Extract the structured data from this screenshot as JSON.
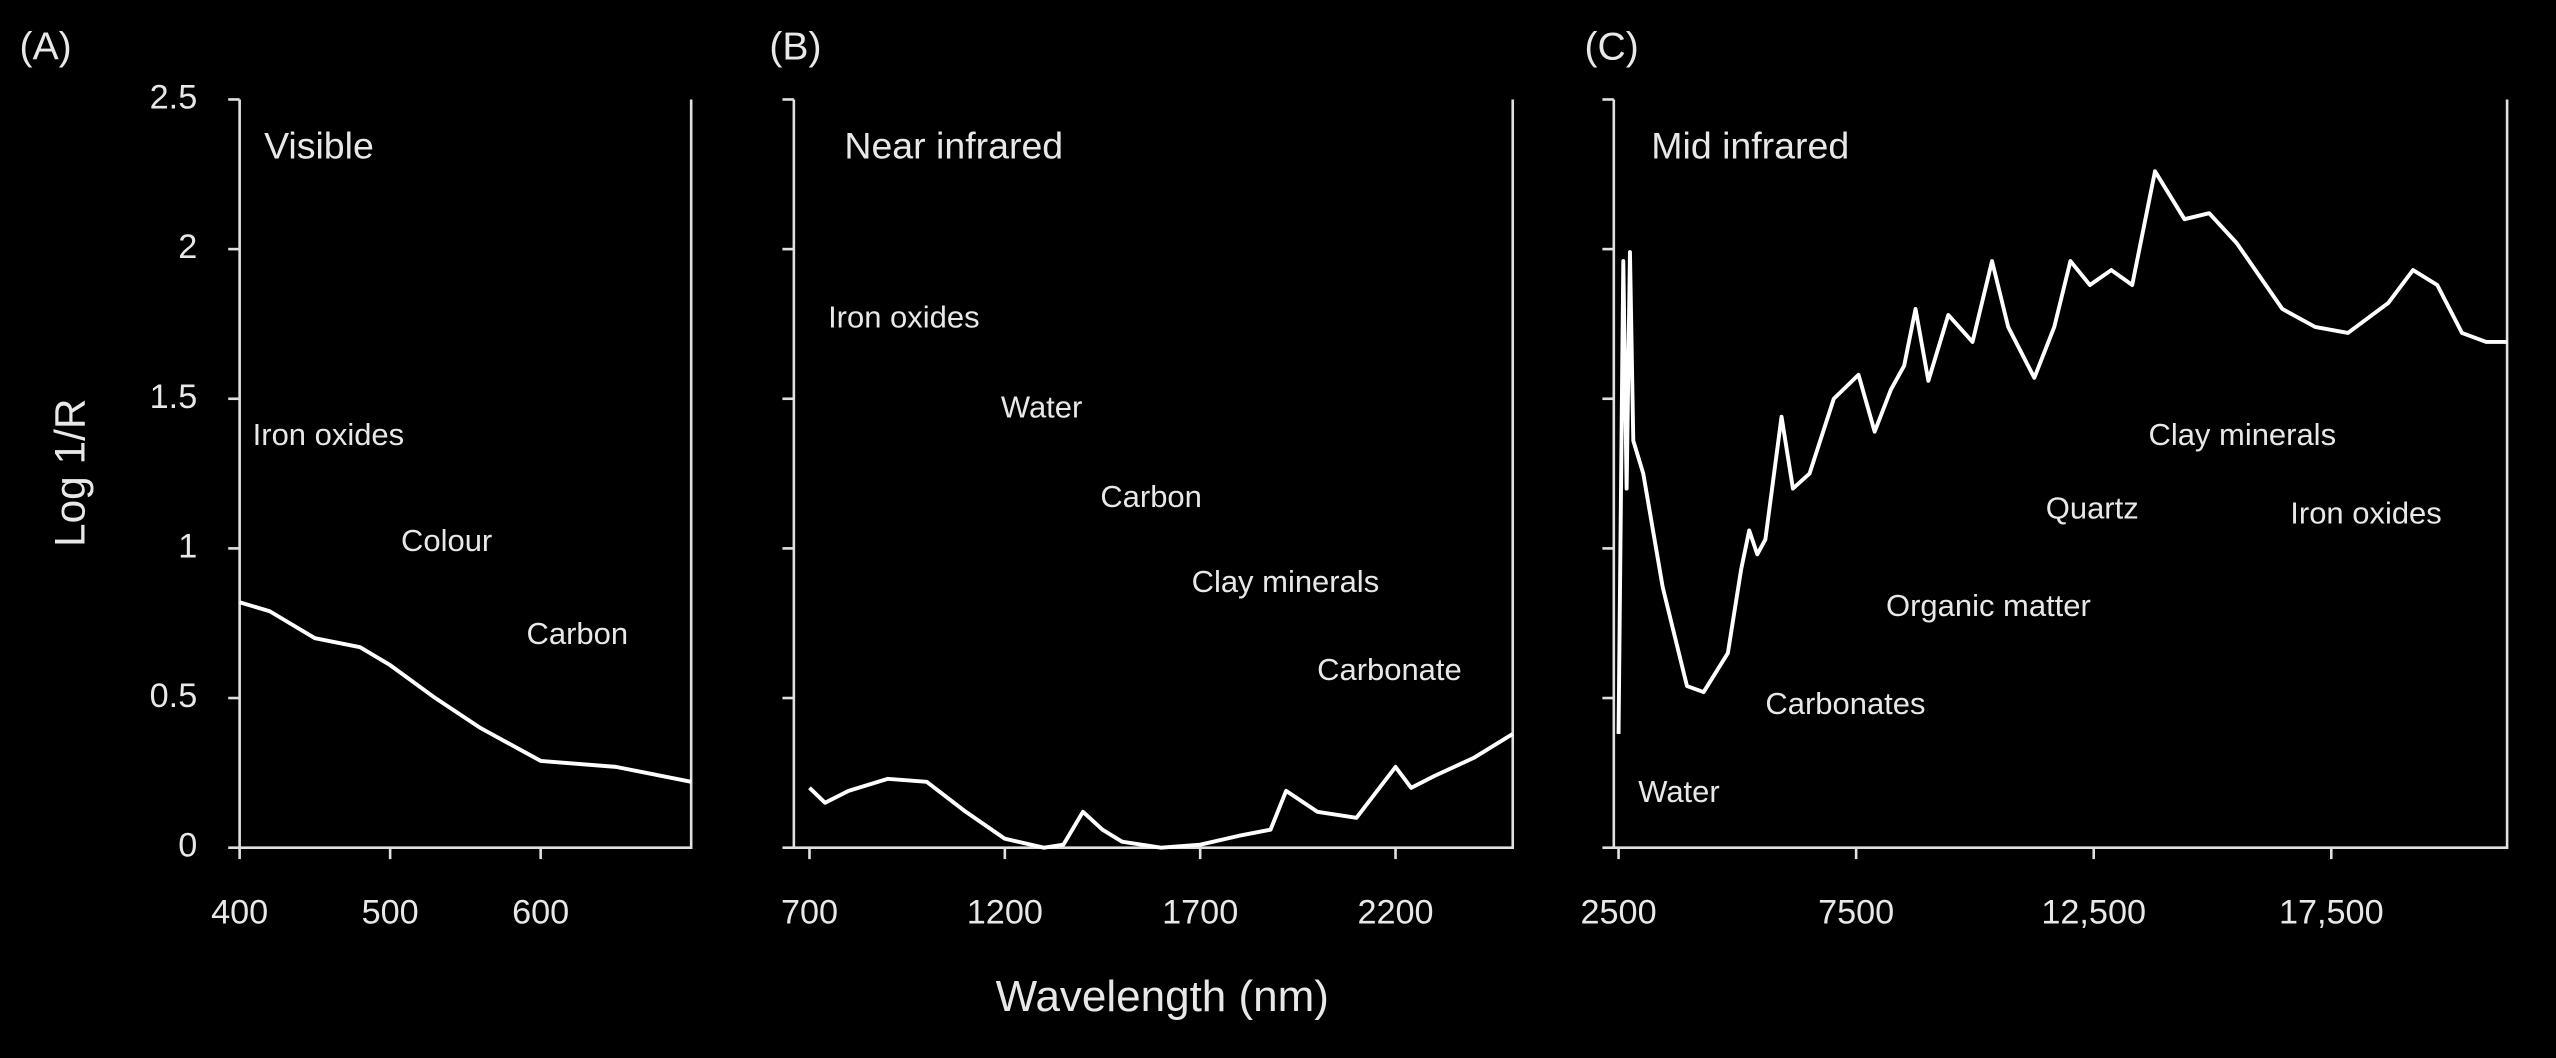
{
  "chart_data": [
    {
      "type": "line",
      "label": "(A)",
      "title": "Visible",
      "ylabel": "Log 1/R",
      "xlim": [
        400,
        700
      ],
      "ylim": [
        0,
        2.5
      ],
      "xticks": [
        400,
        500,
        600
      ],
      "yticks": [
        0,
        0.5,
        1,
        1.5,
        2,
        2.5
      ],
      "color": "#ffffff",
      "x": [
        400,
        420,
        450,
        480,
        500,
        530,
        560,
        600,
        650,
        700
      ],
      "values": [
        0.82,
        0.79,
        0.7,
        0.67,
        0.61,
        0.5,
        0.4,
        0.29,
        0.27,
        0.22
      ],
      "annotations": [
        "Iron oxides",
        "Colour",
        "Carbon"
      ]
    },
    {
      "type": "line",
      "label": "(B)",
      "title": "Near infrared",
      "xlabel": "Wavelength (nm)",
      "xlim": [
        660,
        2500
      ],
      "ylim": [
        0,
        2.5
      ],
      "xticks": [
        700,
        1200,
        1700,
        2200
      ],
      "color": "#ffffff",
      "x": [
        700,
        740,
        800,
        900,
        1000,
        1100,
        1200,
        1300,
        1350,
        1400,
        1450,
        1500,
        1600,
        1700,
        1800,
        1880,
        1920,
        2000,
        2100,
        2200,
        2240,
        2300,
        2400,
        2500
      ],
      "values": [
        0.2,
        0.15,
        0.19,
        0.23,
        0.22,
        0.12,
        0.03,
        0,
        0.01,
        0.12,
        0.06,
        0.02,
        0,
        0.01,
        0.04,
        0.06,
        0.19,
        0.12,
        0.1,
        0.27,
        0.2,
        0.24,
        0.3,
        0.38
      ],
      "annotations": [
        "Iron oxides",
        "Water",
        "Carbon",
        "Clay minerals",
        "Carbonate"
      ]
    },
    {
      "type": "line",
      "label": "(C)",
      "title": "Mid infrared",
      "xlim": [
        2400,
        21200
      ],
      "ylim": [
        0,
        2.5
      ],
      "xticks": [
        2500,
        7500,
        {
          "value": 12500,
          "label": "12,500"
        },
        {
          "value": 17500,
          "label": "17,500"
        }
      ],
      "color": "#ffffff",
      "x": [
        2500,
        2600,
        2670,
        2740,
        2810,
        3020,
        3430,
        3940,
        4290,
        4800,
        5080,
        5250,
        5420,
        5590,
        5930,
        6170,
        6520,
        7030,
        7550,
        7890,
        8230,
        8510,
        8750,
        9020,
        9440,
        9950,
        10360,
        10700,
        11250,
        11670,
        12010,
        12420,
        12870,
        13310,
        13790,
        14410,
        14930,
        15510,
        16470,
        17160,
        17850,
        18700,
        19220,
        19730,
        20250,
        20760,
        21200
      ],
      "values": [
        0.38,
        1.96,
        1.2,
        1.99,
        1.36,
        1.25,
        0.87,
        0.54,
        0.52,
        0.65,
        0.93,
        1.06,
        0.98,
        1.03,
        1.44,
        1.2,
        1.25,
        1.5,
        1.58,
        1.39,
        1.53,
        1.61,
        1.8,
        1.56,
        1.78,
        1.69,
        1.96,
        1.74,
        1.57,
        1.74,
        1.96,
        1.88,
        1.93,
        1.88,
        2.26,
        2.1,
        2.12,
        2.02,
        1.8,
        1.74,
        1.72,
        1.82,
        1.93,
        1.88,
        1.72,
        1.69,
        1.69
      ],
      "annotations": [
        "Water",
        "Carbonates",
        "Organic matter",
        "Quartz",
        "Clay minerals",
        "Iron oxides"
      ]
    }
  ]
}
